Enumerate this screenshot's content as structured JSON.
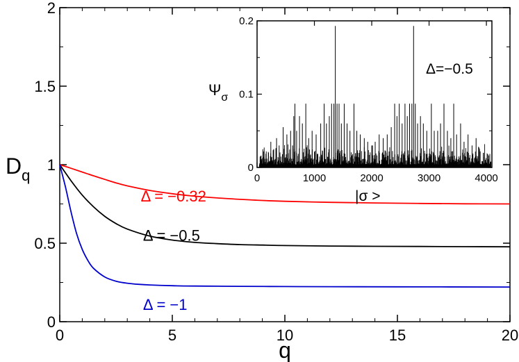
{
  "chart_data": [
    {
      "type": "line",
      "xlabel": "q",
      "ylabel": "D",
      "ylabel_sub": "q",
      "xlim": [
        0,
        20
      ],
      "ylim": [
        0,
        2
      ],
      "xticks": [
        0,
        5,
        10,
        15,
        20
      ],
      "yticks": [
        "0",
        "0.5",
        "1",
        "1.5",
        "2"
      ],
      "grid": false,
      "series": [
        {
          "name": "Δ = −0.32",
          "color": "#ff0000",
          "label_pos": [
            3.6,
            0.8
          ],
          "x": [
            0,
            0.5,
            1,
            1.5,
            2,
            2.5,
            3,
            4,
            5,
            6,
            7,
            8,
            9,
            10,
            12,
            14,
            16,
            18,
            20
          ],
          "y": [
            1.0,
            0.977,
            0.953,
            0.929,
            0.906,
            0.884,
            0.865,
            0.836,
            0.815,
            0.799,
            0.788,
            0.779,
            0.772,
            0.767,
            0.76,
            0.756,
            0.753,
            0.751,
            0.75
          ]
        },
        {
          "name": "Δ = −0.5",
          "color": "#000000",
          "label_pos": [
            3.7,
            0.55
          ],
          "x": [
            0,
            0.5,
            1,
            1.5,
            2,
            2.5,
            3,
            4,
            5,
            6,
            7,
            8,
            9,
            10,
            12,
            14,
            16,
            18,
            20
          ],
          "y": [
            1.0,
            0.898,
            0.806,
            0.732,
            0.671,
            0.625,
            0.59,
            0.545,
            0.52,
            0.505,
            0.497,
            0.491,
            0.488,
            0.485,
            0.482,
            0.48,
            0.479,
            0.478,
            0.477
          ]
        },
        {
          "name": "Δ = −1",
          "color": "#0000cc",
          "label_pos": [
            3.7,
            0.11
          ],
          "x": [
            0,
            0.25,
            0.5,
            0.75,
            1,
            1.25,
            1.5,
            2,
            2.5,
            3,
            3.5,
            4,
            5,
            6,
            7,
            8,
            10,
            12,
            15,
            20
          ],
          "y": [
            1.0,
            0.86,
            0.7,
            0.56,
            0.46,
            0.39,
            0.34,
            0.285,
            0.258,
            0.245,
            0.238,
            0.234,
            0.229,
            0.227,
            0.226,
            0.225,
            0.224,
            0.223,
            0.222,
            0.221
          ]
        }
      ]
    },
    {
      "type": "bar",
      "title": "Δ=−0.5",
      "xlabel": "|σ >",
      "ylabel": "Ψ",
      "ylabel_sub": "σ",
      "xlim": [
        0,
        4096
      ],
      "ylim": [
        0,
        0.2
      ],
      "xticks": [
        0,
        1000,
        2000,
        3000,
        4000
      ],
      "yticks": [
        "0",
        "0.1",
        "0.2"
      ],
      "grid": false,
      "spikes": [
        {
          "x": 200,
          "y": 0.02
        },
        {
          "x": 240,
          "y": 0.035
        },
        {
          "x": 290,
          "y": 0.025
        },
        {
          "x": 340,
          "y": 0.04
        },
        {
          "x": 385,
          "y": 0.03
        },
        {
          "x": 455,
          "y": 0.055
        },
        {
          "x": 520,
          "y": 0.045
        },
        {
          "x": 585,
          "y": 0.05
        },
        {
          "x": 620,
          "y": 0.03
        },
        {
          "x": 640,
          "y": 0.07
        },
        {
          "x": 660,
          "y": 0.087
        },
        {
          "x": 690,
          "y": 0.05
        },
        {
          "x": 740,
          "y": 0.07
        },
        {
          "x": 790,
          "y": 0.06
        },
        {
          "x": 850,
          "y": 0.087
        },
        {
          "x": 900,
          "y": 0.04
        },
        {
          "x": 960,
          "y": 0.05
        },
        {
          "x": 1030,
          "y": 0.045
        },
        {
          "x": 1110,
          "y": 0.06
        },
        {
          "x": 1170,
          "y": 0.087
        },
        {
          "x": 1210,
          "y": 0.06
        },
        {
          "x": 1260,
          "y": 0.07
        },
        {
          "x": 1300,
          "y": 0.087
        },
        {
          "x": 1340,
          "y": 0.087
        },
        {
          "x": 1365,
          "y": 0.193
        },
        {
          "x": 1395,
          "y": 0.087
        },
        {
          "x": 1430,
          "y": 0.087
        },
        {
          "x": 1470,
          "y": 0.06
        },
        {
          "x": 1520,
          "y": 0.087
        },
        {
          "x": 1570,
          "y": 0.06
        },
        {
          "x": 1620,
          "y": 0.05
        },
        {
          "x": 1690,
          "y": 0.087
        },
        {
          "x": 1740,
          "y": 0.05
        },
        {
          "x": 1800,
          "y": 0.045
        },
        {
          "x": 1870,
          "y": 0.04
        },
        {
          "x": 1930,
          "y": 0.035
        },
        {
          "x": 2000,
          "y": 0.03
        },
        {
          "x": 2060,
          "y": 0.035
        },
        {
          "x": 2130,
          "y": 0.045
        },
        {
          "x": 2200,
          "y": 0.04
        },
        {
          "x": 2270,
          "y": 0.045
        },
        {
          "x": 2340,
          "y": 0.055
        },
        {
          "x": 2400,
          "y": 0.087
        },
        {
          "x": 2440,
          "y": 0.07
        },
        {
          "x": 2480,
          "y": 0.087
        },
        {
          "x": 2530,
          "y": 0.06
        },
        {
          "x": 2580,
          "y": 0.087
        },
        {
          "x": 2620,
          "y": 0.07
        },
        {
          "x": 2660,
          "y": 0.087
        },
        {
          "x": 2700,
          "y": 0.087
        },
        {
          "x": 2730,
          "y": 0.193
        },
        {
          "x": 2760,
          "y": 0.087
        },
        {
          "x": 2800,
          "y": 0.06
        },
        {
          "x": 2850,
          "y": 0.07
        },
        {
          "x": 2900,
          "y": 0.06
        },
        {
          "x": 2960,
          "y": 0.05
        },
        {
          "x": 3040,
          "y": 0.087
        },
        {
          "x": 3090,
          "y": 0.05
        },
        {
          "x": 3150,
          "y": 0.05
        },
        {
          "x": 3200,
          "y": 0.06
        },
        {
          "x": 3260,
          "y": 0.087
        },
        {
          "x": 3320,
          "y": 0.05
        },
        {
          "x": 3380,
          "y": 0.04
        },
        {
          "x": 3430,
          "y": 0.087
        },
        {
          "x": 3480,
          "y": 0.045
        },
        {
          "x": 3550,
          "y": 0.06
        },
        {
          "x": 3610,
          "y": 0.035
        },
        {
          "x": 3680,
          "y": 0.045
        },
        {
          "x": 3750,
          "y": 0.03
        },
        {
          "x": 3820,
          "y": 0.04
        },
        {
          "x": 3880,
          "y": 0.025
        },
        {
          "x": 3950,
          "y": 0.02
        }
      ]
    }
  ]
}
